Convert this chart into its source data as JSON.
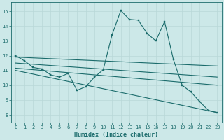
{
  "bg_color": "#cce8e8",
  "grid_color": "#b8d8d8",
  "line_color": "#1a6b6b",
  "line_width": 0.8,
  "marker_size": 2.0,
  "xlabel": "Humidex (Indice chaleur)",
  "xlabel_fontsize": 6.0,
  "tick_fontsize": 5.0,
  "xlim": [
    -0.5,
    23.5
  ],
  "ylim": [
    7.5,
    15.6
  ],
  "yticks": [
    8,
    9,
    10,
    11,
    12,
    13,
    14,
    15
  ],
  "xticks": [
    0,
    1,
    2,
    3,
    4,
    5,
    6,
    7,
    8,
    9,
    10,
    11,
    12,
    13,
    14,
    15,
    16,
    17,
    18,
    19,
    20,
    21,
    22,
    23
  ],
  "series1_x": [
    0,
    1,
    2,
    3,
    4,
    5,
    6,
    7,
    8,
    9,
    10,
    11,
    12,
    13,
    14,
    15,
    16,
    17,
    18,
    19,
    20,
    21,
    22,
    23
  ],
  "series1_y": [
    12.0,
    11.65,
    11.2,
    11.1,
    10.7,
    10.55,
    10.8,
    9.65,
    9.9,
    10.55,
    11.05,
    13.4,
    15.05,
    14.45,
    14.4,
    13.5,
    13.0,
    14.3,
    11.75,
    10.0,
    9.55,
    8.9,
    8.3,
    8.15
  ],
  "trend1_x": [
    0,
    23
  ],
  "trend1_y": [
    11.9,
    11.3
  ],
  "trend2_x": [
    0,
    23
  ],
  "trend2_y": [
    11.5,
    10.55
  ],
  "trend3_x": [
    0,
    23
  ],
  "trend3_y": [
    11.15,
    10.0
  ],
  "trend4_x": [
    0,
    23
  ],
  "trend4_y": [
    11.0,
    8.15
  ]
}
